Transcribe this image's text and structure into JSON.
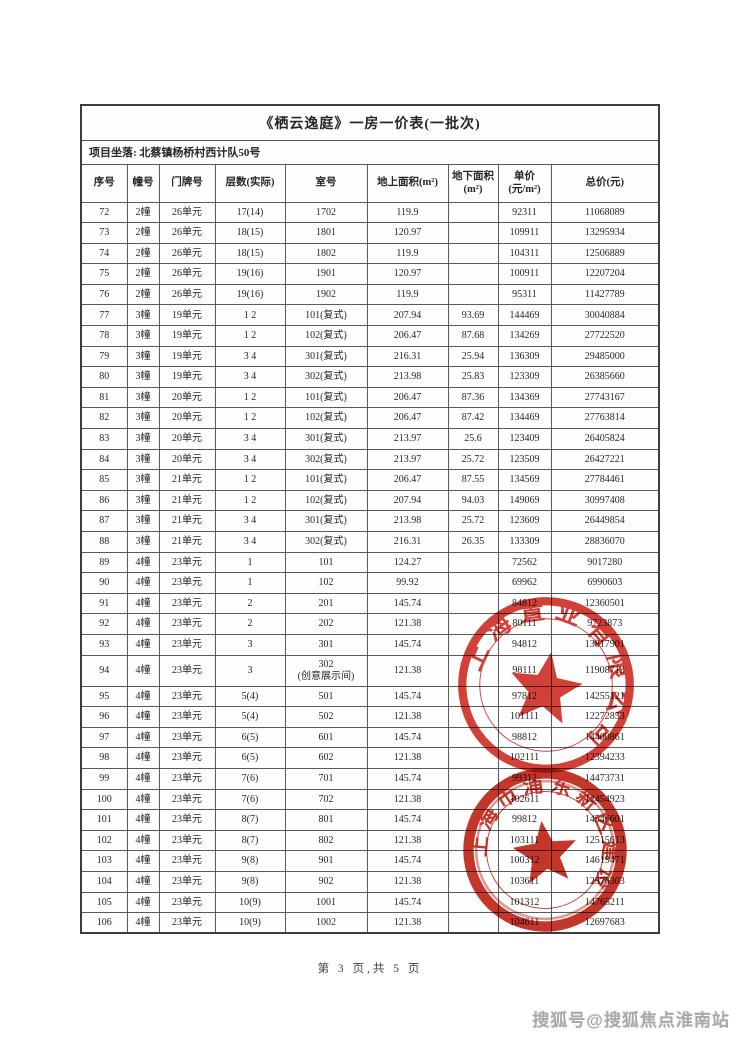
{
  "page": {
    "title": "《栖云逸庭》一房一价表(一批次)",
    "location_label": "项目坐落:",
    "location_value": "北蔡镇杨桥村西计队50号",
    "footer": "第 3 页,共  5 页",
    "watermark": "搜狐号@搜狐焦点淮南站"
  },
  "table": {
    "headers": [
      "序号",
      "幢号",
      "门牌号",
      "层数(实际)",
      "室号",
      "地上面积(m²)",
      "地下面积\n(m²)",
      "单价\n(元/m²)",
      "总价(元)"
    ],
    "rows": [
      [
        "72",
        "2幢",
        "26单元",
        "17(14)",
        "1702",
        "119.9",
        "",
        "92311",
        "11068089"
      ],
      [
        "73",
        "2幢",
        "26单元",
        "18(15)",
        "1801",
        "120.97",
        "",
        "109911",
        "13295934"
      ],
      [
        "74",
        "2幢",
        "26单元",
        "18(15)",
        "1802",
        "119.9",
        "",
        "104311",
        "12506889"
      ],
      [
        "75",
        "2幢",
        "26单元",
        "19(16)",
        "1901",
        "120.97",
        "",
        "100911",
        "12207204"
      ],
      [
        "76",
        "2幢",
        "26单元",
        "19(16)",
        "1902",
        "119.9",
        "",
        "95311",
        "11427789"
      ],
      [
        "77",
        "3幢",
        "19单元",
        "1 2",
        "101(复式)",
        "207.94",
        "93.69",
        "144469",
        "30040884"
      ],
      [
        "78",
        "3幢",
        "19单元",
        "1 2",
        "102(复式)",
        "206.47",
        "87.68",
        "134269",
        "27722520"
      ],
      [
        "79",
        "3幢",
        "19单元",
        "3 4",
        "301(复式)",
        "216.31",
        "25.94",
        "136309",
        "29485000"
      ],
      [
        "80",
        "3幢",
        "19单元",
        "3 4",
        "302(复式)",
        "213.98",
        "25.83",
        "123309",
        "26385660"
      ],
      [
        "81",
        "3幢",
        "20单元",
        "1 2",
        "101(复式)",
        "206.47",
        "87.36",
        "134369",
        "27743167"
      ],
      [
        "82",
        "3幢",
        "20单元",
        "1 2",
        "102(复式)",
        "206.47",
        "87.42",
        "134469",
        "27763814"
      ],
      [
        "83",
        "3幢",
        "20单元",
        "3 4",
        "301(复式)",
        "213.97",
        "25.6",
        "123409",
        "26405824"
      ],
      [
        "84",
        "3幢",
        "20单元",
        "3 4",
        "302(复式)",
        "213.97",
        "25.72",
        "123509",
        "26427221"
      ],
      [
        "85",
        "3幢",
        "21单元",
        "1 2",
        "101(复式)",
        "206.47",
        "87.55",
        "134569",
        "27784461"
      ],
      [
        "86",
        "3幢",
        "21单元",
        "1 2",
        "102(复式)",
        "207.94",
        "94.03",
        "149069",
        "30997408"
      ],
      [
        "87",
        "3幢",
        "21单元",
        "3 4",
        "301(复式)",
        "213.98",
        "25.72",
        "123609",
        "26449854"
      ],
      [
        "88",
        "3幢",
        "21单元",
        "3 4",
        "302(复式)",
        "216.31",
        "26.35",
        "133309",
        "28836070"
      ],
      [
        "89",
        "4幢",
        "23单元",
        "1",
        "101",
        "124.27",
        "",
        "72562",
        "9017280"
      ],
      [
        "90",
        "4幢",
        "23单元",
        "1",
        "102",
        "99.92",
        "",
        "69962",
        "6990603"
      ],
      [
        "91",
        "4幢",
        "23单元",
        "2",
        "201",
        "145.74",
        "",
        "84812",
        "12360501"
      ],
      [
        "92",
        "4幢",
        "23单元",
        "2",
        "202",
        "121.38",
        "",
        "80111",
        "9723873"
      ],
      [
        "93",
        "4幢",
        "23单元",
        "3",
        "301",
        "145.74",
        "",
        "94812",
        "13817901"
      ],
      [
        "94",
        "4幢",
        "23单元",
        "3",
        "302\n(创意展示间)",
        "121.38",
        "",
        "98111",
        "11908713"
      ],
      [
        "95",
        "4幢",
        "23单元",
        "5(4)",
        "501",
        "145.74",
        "",
        "97812",
        "14255121"
      ],
      [
        "96",
        "4幢",
        "23单元",
        "5(4)",
        "502",
        "121.38",
        "",
        "101111",
        "12272853"
      ],
      [
        "97",
        "4幢",
        "23单元",
        "6(5)",
        "601",
        "145.74",
        "",
        "98812",
        "14400861"
      ],
      [
        "98",
        "4幢",
        "23单元",
        "6(5)",
        "602",
        "121.38",
        "",
        "102111",
        "12394233"
      ],
      [
        "99",
        "4幢",
        "23单元",
        "7(6)",
        "701",
        "145.74",
        "",
        "99312",
        "14473731"
      ],
      [
        "100",
        "4幢",
        "23单元",
        "7(6)",
        "702",
        "121.38",
        "",
        "102611",
        "12454923"
      ],
      [
        "101",
        "4幢",
        "23单元",
        "8(7)",
        "801",
        "145.74",
        "",
        "99812",
        "14546601"
      ],
      [
        "102",
        "4幢",
        "23单元",
        "8(7)",
        "802",
        "121.38",
        "",
        "103111",
        "12515613"
      ],
      [
        "103",
        "4幢",
        "23单元",
        "9(8)",
        "901",
        "145.74",
        "",
        "100312",
        "14619471"
      ],
      [
        "104",
        "4幢",
        "23单元",
        "9(8)",
        "902",
        "121.38",
        "",
        "103611",
        "12576303"
      ],
      [
        "105",
        "4幢",
        "23单元",
        "10(9)",
        "1001",
        "145.74",
        "",
        "101312",
        "14765211"
      ],
      [
        "106",
        "4幢",
        "23单元",
        "10(9)",
        "1002",
        "121.38",
        "",
        "104611",
        "12697683"
      ]
    ]
  },
  "stamps": [
    {
      "arc_text": "上海置业有限公司",
      "color": "#ce2b22"
    },
    {
      "arc_text": "上海市浦东新区建设",
      "color": "#c22a1e"
    }
  ]
}
